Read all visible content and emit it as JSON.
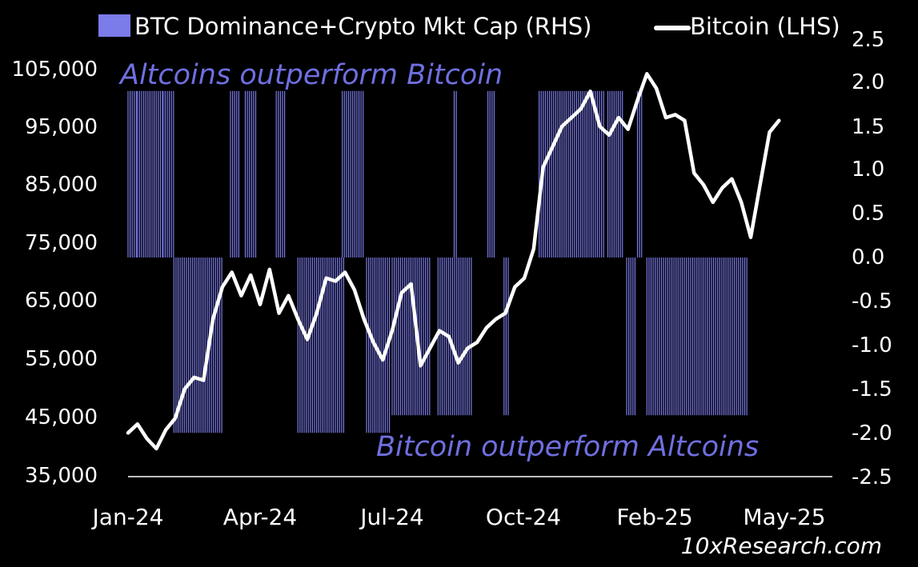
{
  "chart_data": {
    "type": "bar",
    "title": "",
    "xlabel": "",
    "ylabel": "",
    "legend": {
      "placement": "top",
      "entries": [
        {
          "label": "BTC Dominance+Crypto Mkt Cap (RHS)",
          "color": "#7b7bea",
          "marker": "bar"
        },
        {
          "label": "Bitcoin (LHS)",
          "color": "#ffffff",
          "marker": "line"
        }
      ]
    },
    "x_ticks": [
      "Jan-24",
      "Apr-24",
      "Jul-24",
      "Oct-24",
      "Feb-25",
      "May-25"
    ],
    "y_left": {
      "ticks": [
        "105,000",
        "95,000",
        "85,000",
        "75,000",
        "65,000",
        "55,000",
        "45,000",
        "35,000"
      ],
      "ylim": [
        35000,
        105000
      ]
    },
    "y_right": {
      "ticks": [
        "2.5",
        "2.0",
        "1.5",
        "1.0",
        "0.5",
        "0.0",
        "-0.5",
        "-1.0",
        "-1.5",
        "-2.0",
        "-2.5"
      ],
      "ylim": [
        -2.5,
        2.5
      ]
    },
    "annotations": {
      "top": "Altcoins outperform Bitcoin",
      "bottom": "Bitcoin outperform Altcoins"
    },
    "watermark": "10xResearch.com",
    "grid": false,
    "series": [
      {
        "name": "BTC Dominance+Crypto Mkt Cap (RHS)",
        "axis": "right",
        "kind": "bar",
        "color": "#7b7bea",
        "x_range": [
          "2024-01-01",
          "2025-04-29"
        ],
        "segments": [
          {
            "start": "2024-01-01",
            "end": "2024-01-08",
            "value": 1.9
          },
          {
            "start": "2024-01-08",
            "end": "2024-01-27",
            "value": 1.9
          },
          {
            "start": "2024-01-27",
            "end": "2024-02-04",
            "value": 1.9
          },
          {
            "start": "2024-02-04",
            "end": "2024-03-12",
            "value": -2.0
          },
          {
            "start": "2024-03-17",
            "end": "2024-03-24",
            "value": 1.9
          },
          {
            "start": "2024-03-28",
            "end": "2024-04-06",
            "value": 1.9
          },
          {
            "start": "2024-04-20",
            "end": "2024-04-27",
            "value": 1.9
          },
          {
            "start": "2024-05-06",
            "end": "2024-06-10",
            "value": -2.0
          },
          {
            "start": "2024-06-08",
            "end": "2024-06-24",
            "value": 1.9
          },
          {
            "start": "2024-06-26",
            "end": "2024-07-14",
            "value": -2.0
          },
          {
            "start": "2024-07-15",
            "end": "2024-08-12",
            "value": -1.8
          },
          {
            "start": "2024-08-18",
            "end": "2024-09-12",
            "value": -1.8
          },
          {
            "start": "2024-08-30",
            "end": "2024-09-02",
            "value": 1.9
          },
          {
            "start": "2024-09-24",
            "end": "2024-09-29",
            "value": 1.9
          },
          {
            "start": "2024-10-06",
            "end": "2024-10-10",
            "value": -1.8
          },
          {
            "start": "2024-11-01",
            "end": "2024-12-20",
            "value": 1.9
          },
          {
            "start": "2024-12-22",
            "end": "2025-01-02",
            "value": 1.9
          },
          {
            "start": "2025-01-05",
            "end": "2025-01-12",
            "value": -1.8
          },
          {
            "start": "2025-01-13",
            "end": "2025-01-17",
            "value": 1.9
          },
          {
            "start": "2025-01-20",
            "end": "2025-04-05",
            "value": -1.8
          }
        ]
      },
      {
        "name": "Bitcoin (LHS)",
        "axis": "left",
        "kind": "line",
        "color": "#ffffff",
        "x": [
          "2024-01-01",
          "2024-01-08",
          "2024-01-15",
          "2024-01-22",
          "2024-01-29",
          "2024-02-05",
          "2024-02-12",
          "2024-02-19",
          "2024-02-26",
          "2024-03-04",
          "2024-03-11",
          "2024-03-18",
          "2024-03-25",
          "2024-04-01",
          "2024-04-08",
          "2024-04-15",
          "2024-04-22",
          "2024-04-29",
          "2024-05-06",
          "2024-05-13",
          "2024-05-20",
          "2024-05-27",
          "2024-06-03",
          "2024-06-10",
          "2024-06-17",
          "2024-06-24",
          "2024-07-01",
          "2024-07-08",
          "2024-07-15",
          "2024-07-22",
          "2024-07-29",
          "2024-08-05",
          "2024-08-12",
          "2024-08-19",
          "2024-08-26",
          "2024-09-02",
          "2024-09-09",
          "2024-09-16",
          "2024-09-23",
          "2024-09-30",
          "2024-10-07",
          "2024-10-14",
          "2024-10-21",
          "2024-10-28",
          "2024-11-04",
          "2024-11-11",
          "2024-11-18",
          "2024-11-25",
          "2024-12-02",
          "2024-12-09",
          "2024-12-16",
          "2024-12-23",
          "2024-12-30",
          "2025-01-06",
          "2025-01-13",
          "2025-01-20",
          "2025-01-27",
          "2025-02-03",
          "2025-02-10",
          "2025-02-17",
          "2025-02-24",
          "2025-03-03",
          "2025-03-10",
          "2025-03-17",
          "2025-03-24",
          "2025-03-31",
          "2025-04-07",
          "2025-04-14",
          "2025-04-21",
          "2025-04-28"
        ],
        "values": [
          42500,
          44000,
          41500,
          39800,
          43000,
          45000,
          50000,
          52000,
          51500,
          62000,
          67500,
          70000,
          66000,
          69500,
          64500,
          70500,
          63000,
          66000,
          62000,
          58500,
          63000,
          69000,
          68500,
          70000,
          67000,
          62000,
          58000,
          55000,
          60000,
          66500,
          68000,
          54000,
          57000,
          60000,
          59000,
          54500,
          57000,
          58000,
          60500,
          62000,
          63000,
          67500,
          69000,
          74000,
          88000,
          91500,
          95000,
          96500,
          98000,
          101000,
          95000,
          93500,
          96500,
          94500,
          99500,
          104000,
          101500,
          96500,
          97000,
          96000,
          87000,
          85000,
          82000,
          84500,
          86000,
          82000,
          76000,
          85000,
          94000,
          96000
        ]
      }
    ]
  }
}
